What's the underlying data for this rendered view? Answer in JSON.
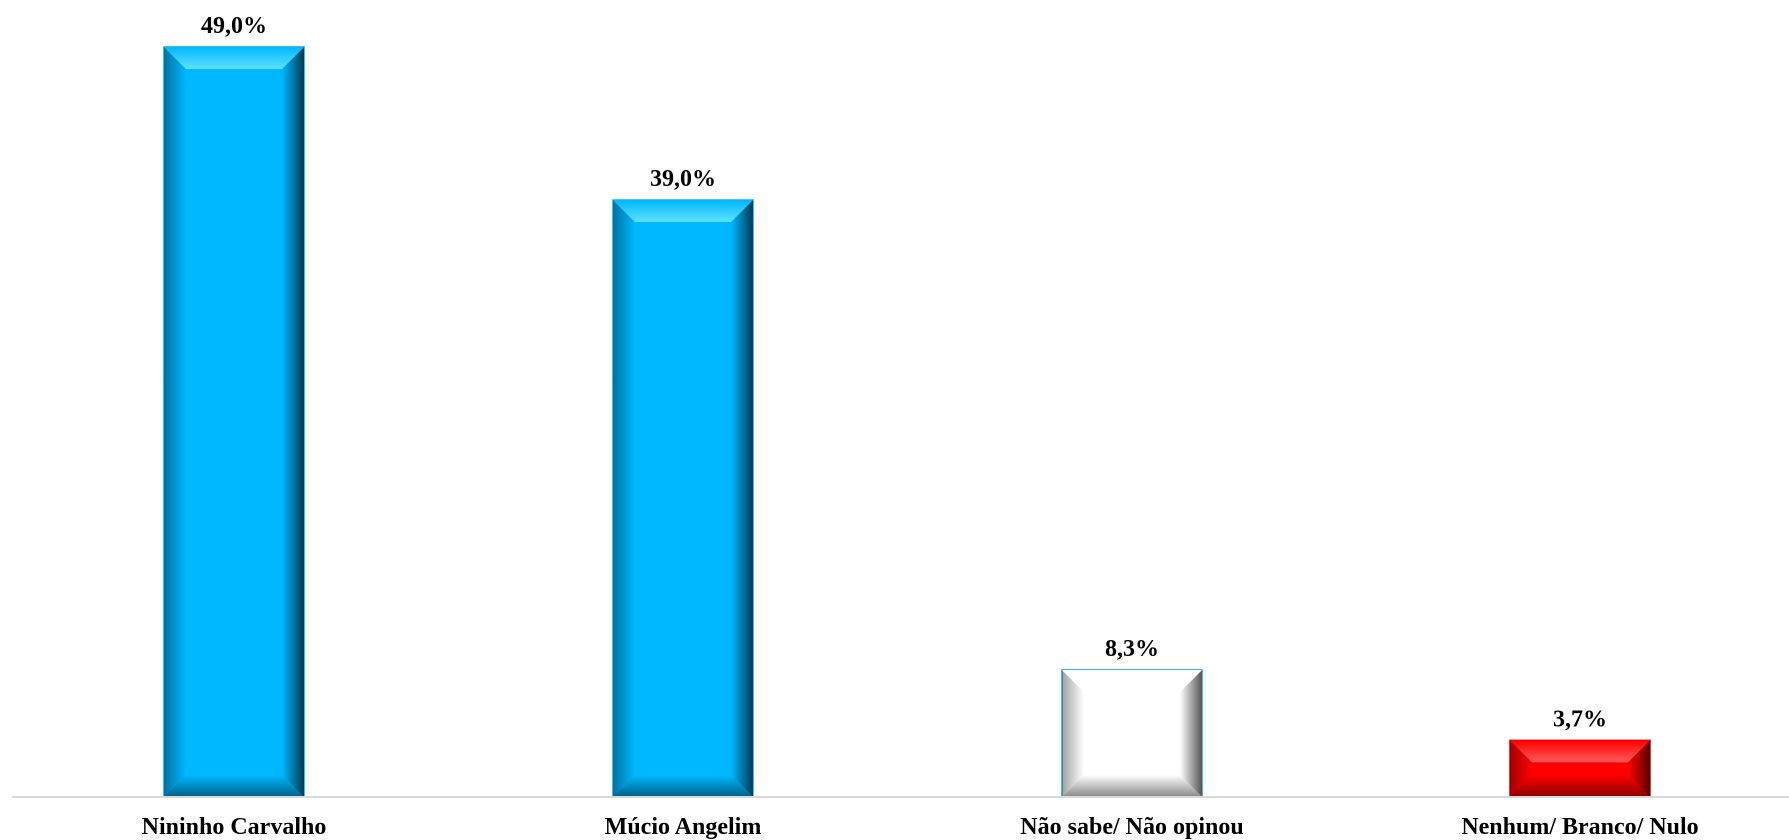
{
  "chart_data": {
    "type": "bar",
    "title": "",
    "xlabel": "",
    "ylabel": "",
    "categories": [
      "Nininho Carvalho",
      "Múcio Angelim",
      "Não sabe/ Não opinou",
      "Nenhum/ Branco/ Nulo"
    ],
    "values": [
      49.0,
      39.0,
      8.3,
      3.7
    ],
    "value_labels": [
      "49,0%",
      "39,0%",
      "8,3%",
      "3,7%"
    ],
    "ylim": [
      0,
      49
    ],
    "grid": false,
    "legend": "none",
    "bar_colors": [
      "#00b8ff",
      "#00b8ff",
      "#ffffff",
      "#ff0000"
    ],
    "bar_dark_colors": [
      "#003a55",
      "#003a55",
      "#555555",
      "#5a0000"
    ],
    "bar_light_colors": [
      "#5ee0ff",
      "#5ee0ff",
      "#ffffff",
      "#ff5a5a"
    ],
    "bar_border_colors": [
      "#00a6e8",
      "#00a6e8",
      "#00a6e8",
      "#cc0000"
    ],
    "axis_color": "#d9d9d9"
  }
}
